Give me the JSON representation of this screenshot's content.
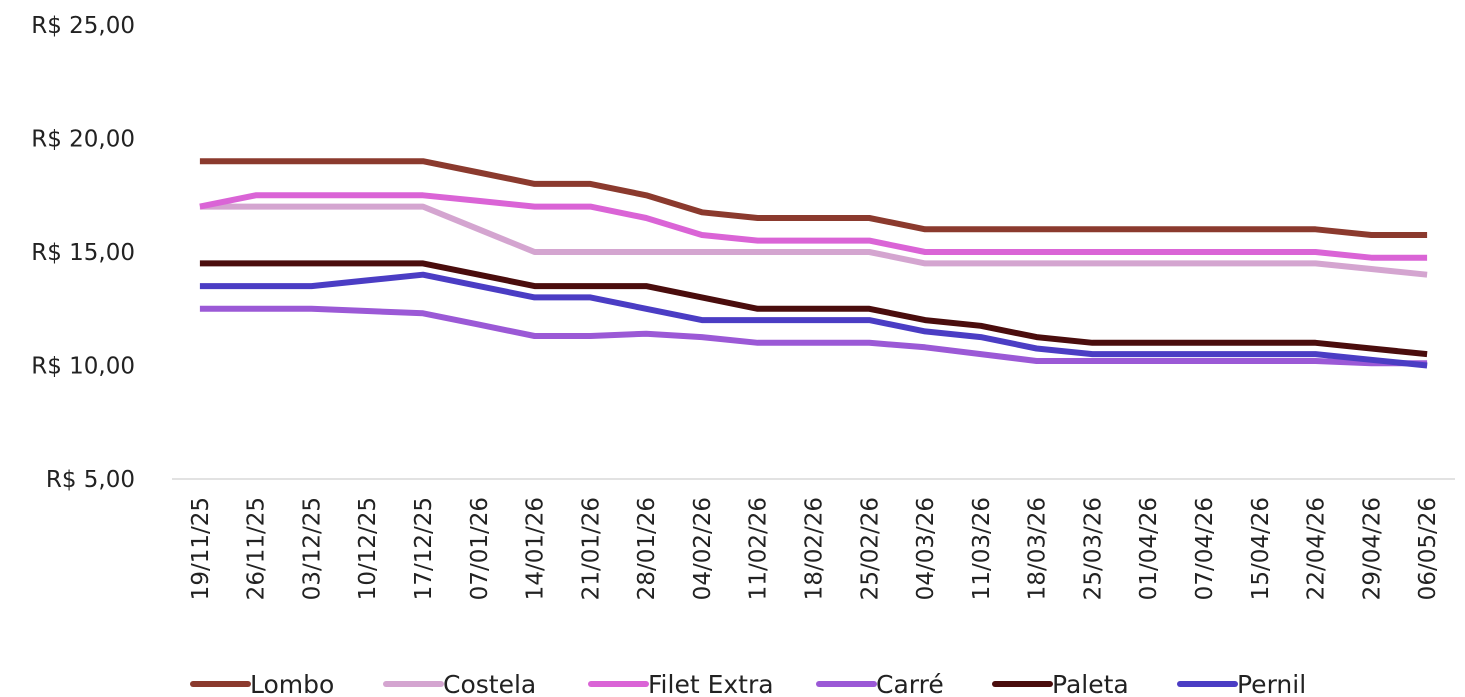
{
  "chart_data": {
    "type": "line",
    "title": "",
    "xlabel": "",
    "ylabel": "",
    "ylim": [
      5,
      25
    ],
    "yticks": [
      "R$ 5,00",
      "R$ 10,00",
      "R$ 15,00",
      "R$ 20,00",
      "R$ 25,00"
    ],
    "ytick_values": [
      5,
      10,
      15,
      20,
      25
    ],
    "grid": false,
    "legend_position": "bottom",
    "x": [
      "19/11/25",
      "26/11/25",
      "03/12/25",
      "10/12/25",
      "17/12/25",
      "07/01/26",
      "14/01/26",
      "21/01/26",
      "28/01/26",
      "04/02/26",
      "11/02/26",
      "18/02/26",
      "25/02/26",
      "04/03/26",
      "11/03/26",
      "18/03/26",
      "25/03/26",
      "01/04/26",
      "07/04/26",
      "15/04/26",
      "22/04/26",
      "29/04/26",
      "06/05/26"
    ],
    "series": [
      {
        "name": "Lombo",
        "color": "#8B3A2E",
        "values": [
          19.0,
          19.0,
          19.0,
          19.0,
          19.0,
          18.5,
          18.0,
          18.0,
          17.5,
          16.75,
          16.5,
          16.5,
          16.5,
          16.0,
          16.0,
          16.0,
          16.0,
          16.0,
          16.0,
          16.0,
          16.0,
          15.75,
          15.75
        ]
      },
      {
        "name": "Costela",
        "color": "#D4A5D0",
        "values": [
          17.0,
          17.0,
          17.0,
          17.0,
          17.0,
          16.0,
          15.0,
          15.0,
          15.0,
          15.0,
          15.0,
          15.0,
          15.0,
          14.5,
          14.5,
          14.5,
          14.5,
          14.5,
          14.5,
          14.5,
          14.5,
          14.25,
          14.0
        ]
      },
      {
        "name": "Filet Extra",
        "color": "#DA64D6",
        "values": [
          17.0,
          17.5,
          17.5,
          17.5,
          17.5,
          17.25,
          17.0,
          17.0,
          16.5,
          15.75,
          15.5,
          15.5,
          15.5,
          15.0,
          15.0,
          15.0,
          15.0,
          15.0,
          15.0,
          15.0,
          15.0,
          14.75,
          14.75
        ]
      },
      {
        "name": "Carré",
        "color": "#9B59D6",
        "values": [
          12.5,
          12.5,
          12.5,
          12.4,
          12.3,
          11.8,
          11.3,
          11.3,
          11.4,
          11.25,
          11.0,
          11.0,
          11.0,
          10.8,
          10.5,
          10.2,
          10.2,
          10.2,
          10.2,
          10.2,
          10.2,
          10.1,
          10.1
        ]
      },
      {
        "name": "Paleta",
        "color": "#4A0D0D",
        "values": [
          14.5,
          14.5,
          14.5,
          14.5,
          14.5,
          14.0,
          13.5,
          13.5,
          13.5,
          13.0,
          12.5,
          12.5,
          12.5,
          12.0,
          11.75,
          11.25,
          11.0,
          11.0,
          11.0,
          11.0,
          11.0,
          10.75,
          10.5
        ]
      },
      {
        "name": "Pernil",
        "color": "#4B3DC4",
        "values": [
          13.5,
          13.5,
          13.5,
          13.75,
          14.0,
          13.5,
          13.0,
          13.0,
          12.5,
          12.0,
          12.0,
          12.0,
          12.0,
          11.5,
          11.25,
          10.75,
          10.5,
          10.5,
          10.5,
          10.5,
          10.5,
          10.25,
          10.0
        ]
      }
    ]
  }
}
